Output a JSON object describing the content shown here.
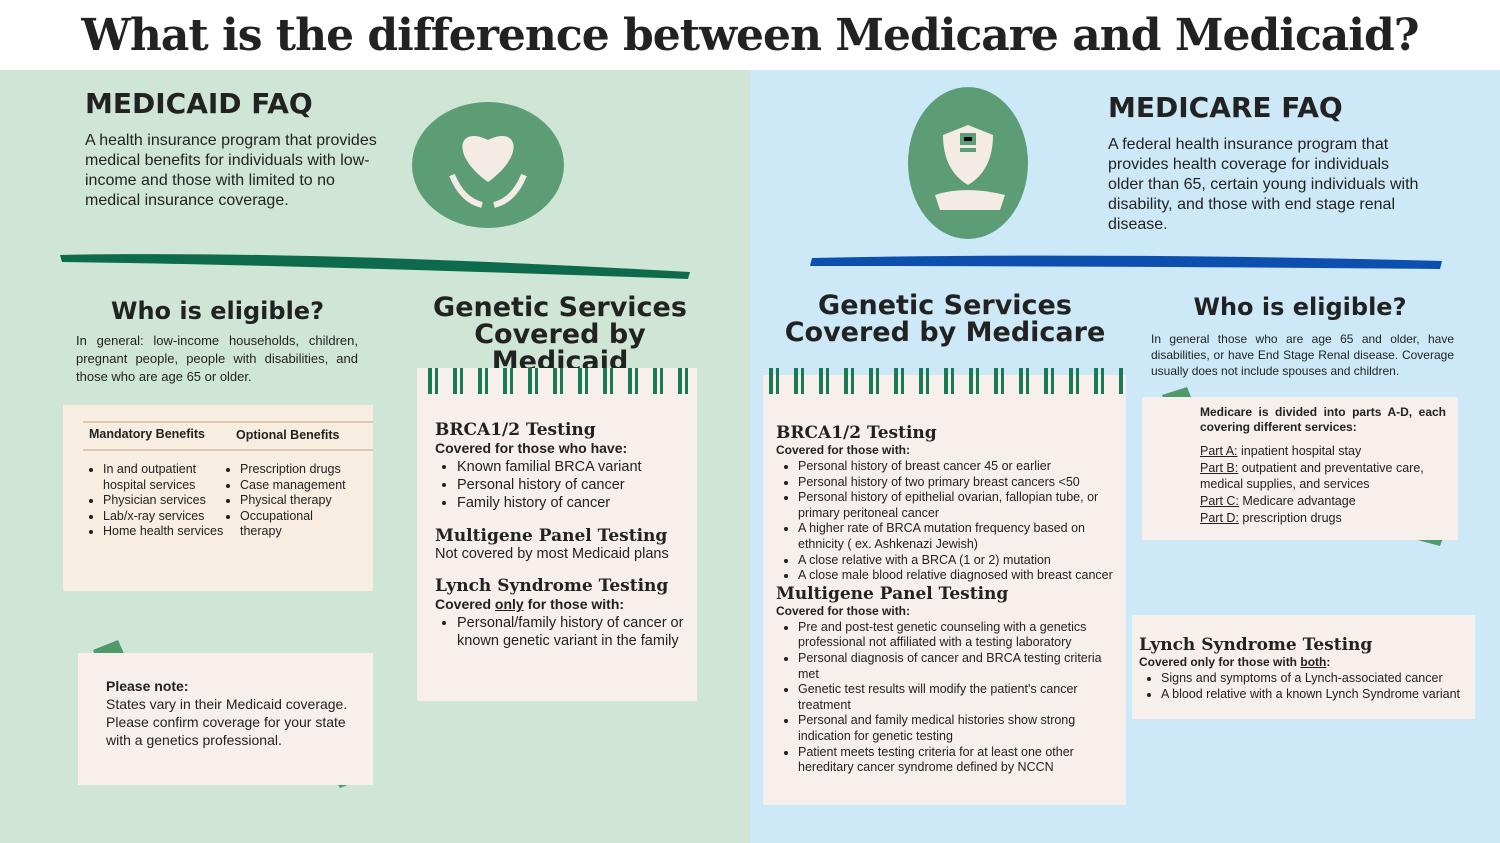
{
  "header": {
    "title": "What is the difference between Medicare and Medicaid?"
  },
  "medicaid": {
    "faq_title": "MEDICAID FAQ",
    "faq_text": "A health insurance program that provides medical benefits for individuals with low-income and those with limited to no medical insurance coverage.",
    "eligible_title": "Who is eligible?",
    "eligible_text": "In general: low-income households, children, pregnant people, people with disabilities, and those who are age 65 or older.",
    "benefits": {
      "mandatory_title": "Mandatory Benefits",
      "optional_title": "Optional Benefits",
      "mandatory": [
        "In and outpatient hospital services",
        "Physician services",
        "Lab/x-ray services",
        "Home health services"
      ],
      "optional": [
        "Prescription drugs",
        "Case management",
        "Physical therapy",
        "Occupational therapy"
      ]
    },
    "note": {
      "title": "Please note:",
      "text": "States vary in their Medicaid coverage. Please confirm coverage for your state with a genetics professional."
    },
    "services": {
      "title": [
        "Genetic Services",
        "Covered by Medicaid"
      ],
      "brca": {
        "title": "BRCA1/2 Testing",
        "intro": "Covered for those who have:",
        "items": [
          "Known familial BRCA variant",
          "Personal history of cancer",
          "Family history of cancer"
        ]
      },
      "multigene": {
        "title": "Multigene Panel Testing",
        "text": "Not covered by most Medicaid plans"
      },
      "lynch": {
        "title": "Lynch Syndrome Testing",
        "intro": {
          "before": "Covered ",
          "emph": "only",
          "after": " for those with:"
        },
        "items": [
          "Personal/family history of cancer or known genetic variant in the family"
        ]
      }
    }
  },
  "medicare": {
    "faq_title": "MEDICARE FAQ",
    "faq_text": "A federal health insurance program that provides health coverage for individuals older than 65, certain young individuals with disability, and those with end stage renal disease.",
    "eligible_title": "Who is eligible?",
    "eligible_text": "In general those who are age 65 and older, have disabilities, or have End Stage Renal disease. Coverage usually does not include spouses and children.",
    "parts": {
      "intro": "Medicare is divided into parts A-D, each covering different services:",
      "items": [
        {
          "label": "Part A:",
          "text": "inpatient hospital stay"
        },
        {
          "label": "Part B:",
          "text": "outpatient and preventative care, medical supplies, and services"
        },
        {
          "label": "Part C:",
          "text": "Medicare advantage"
        },
        {
          "label": "Part D:",
          "text": "prescription drugs"
        }
      ]
    },
    "services": {
      "title": [
        "Genetic Services",
        "Covered by Medicare"
      ],
      "brca": {
        "title": "BRCA1/2 Testing",
        "intro": "Covered for those with:",
        "items": [
          "Personal history of breast cancer 45 or earlier",
          "Personal history of two primary breast cancers <50",
          "Personal history of epithelial ovarian, fallopian tube, or primary peritoneal cancer",
          "A higher rate of BRCA mutation frequency based on ethnicity ( ex. Ashkenazi Jewish)",
          "A close relative with a BRCA (1 or 2) mutation",
          "A close male blood relative diagnosed with breast cancer"
        ]
      },
      "multigene": {
        "title": "Multigene Panel Testing",
        "intro": "Covered for those with:",
        "items": [
          "Pre and post-test genetic counseling with a genetics professional not affiliated with a testing laboratory",
          "Personal diagnosis of cancer and BRCA testing criteria met",
          "Genetic test results will modify the patient's cancer treatment",
          "Personal and family medical histories show strong indication for genetic testing",
          "Patient meets testing criteria for at least one other hereditary cancer syndrome defined by NCCN"
        ]
      },
      "lynch": {
        "title": "Lynch Syndrome Testing",
        "intro": {
          "before": "Covered only for those with ",
          "emph": "both",
          "after": ":"
        },
        "items": [
          "Signs and symptoms of a Lynch-associated cancer",
          "A blood relative with a known Lynch Syndrome variant"
        ]
      }
    }
  }
}
